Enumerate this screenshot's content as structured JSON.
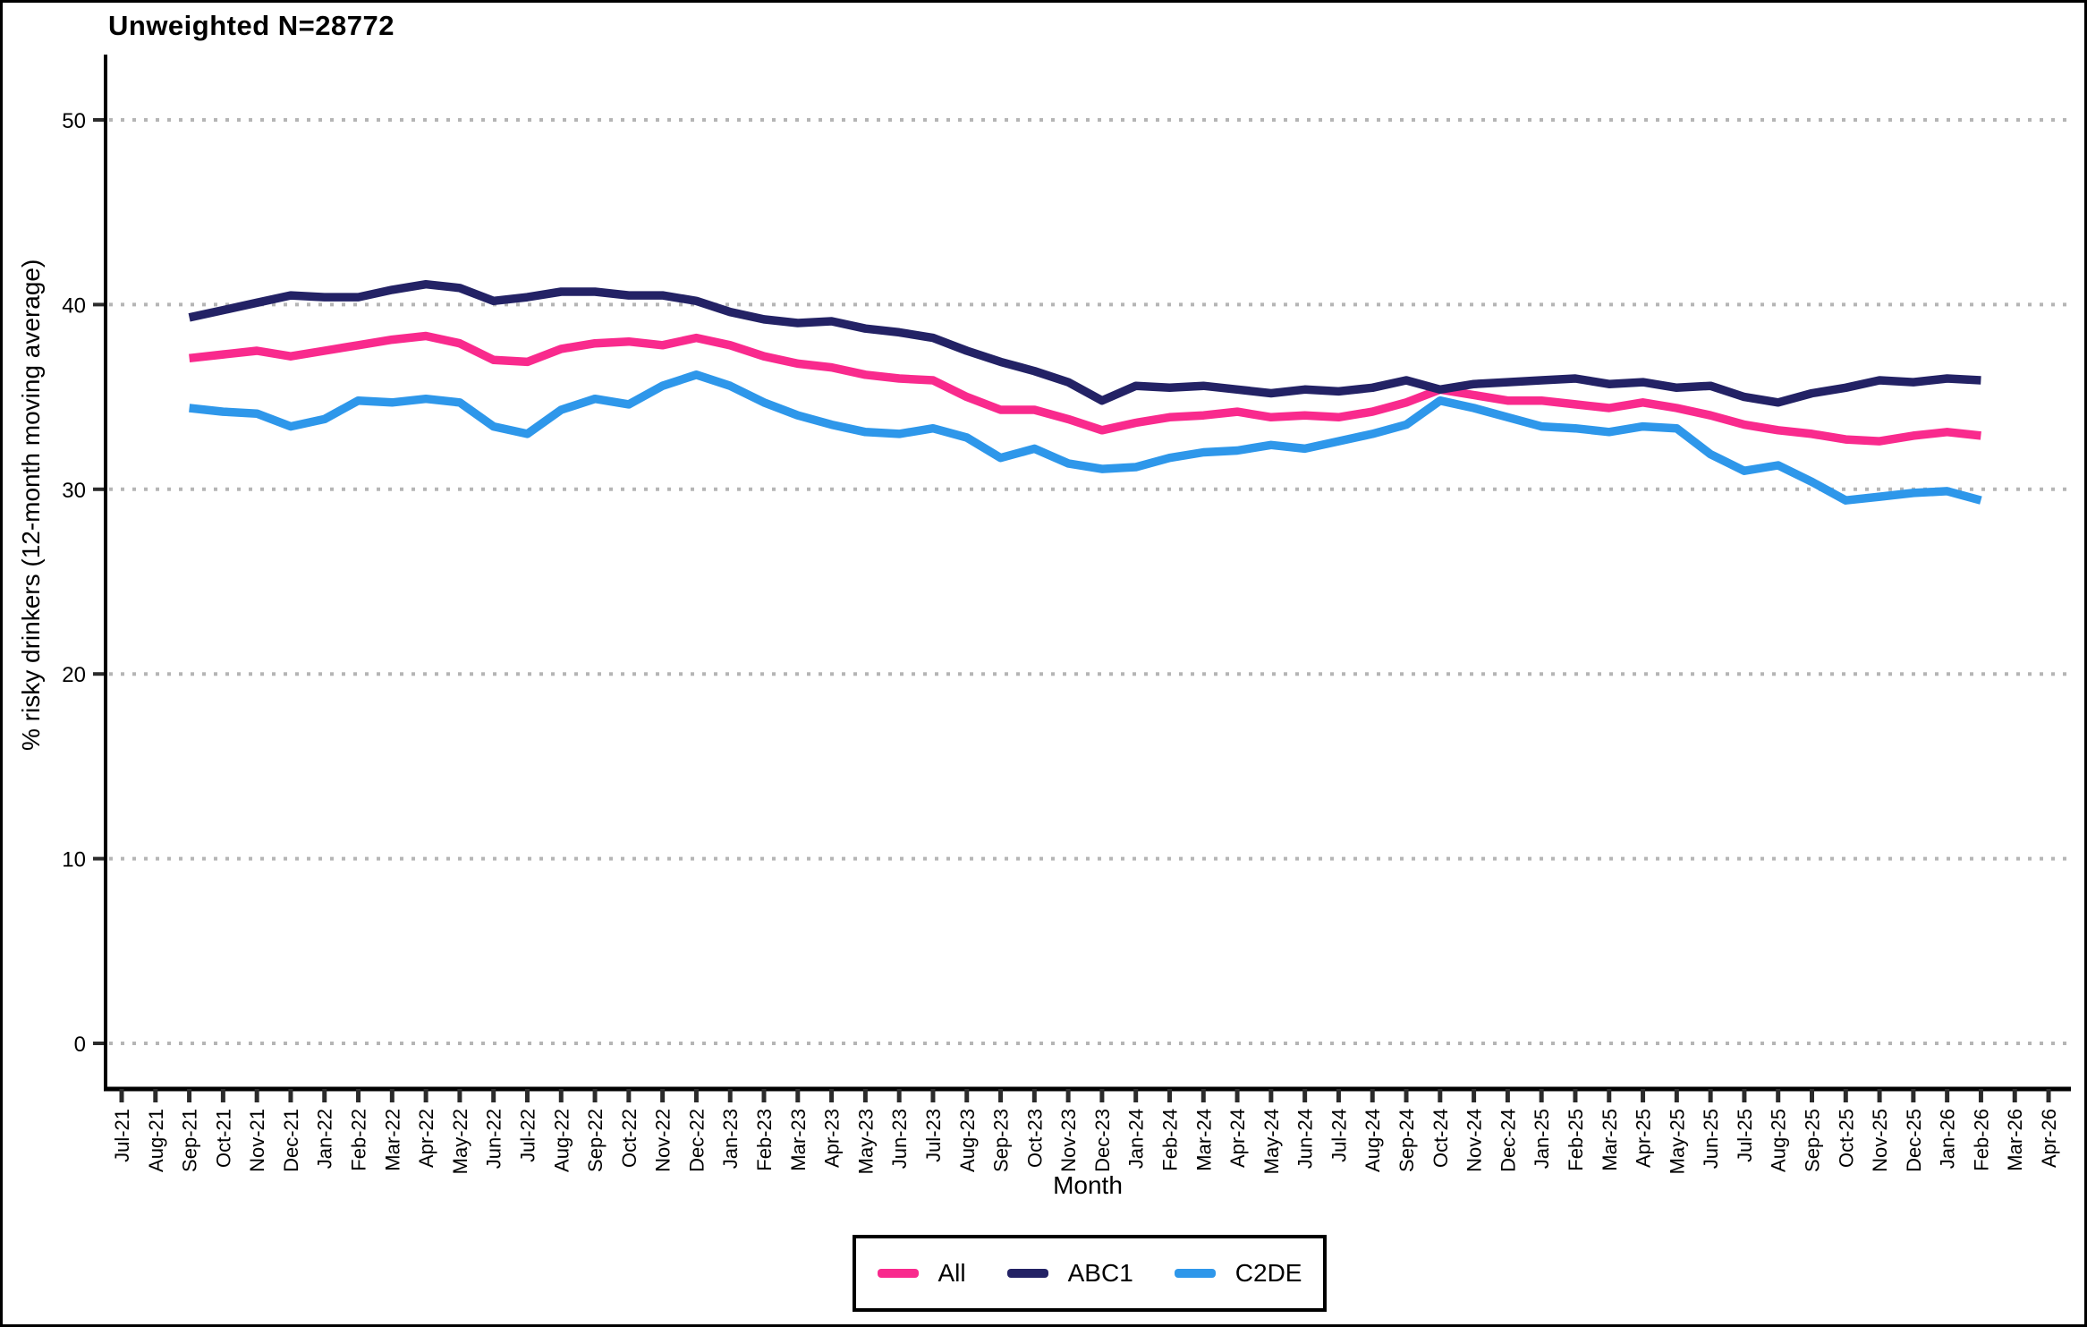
{
  "title": "Unweighted N=28772",
  "legend": {
    "items": [
      {
        "label": "All",
        "color": "#f92a8d"
      },
      {
        "label": "ABC1",
        "color": "#232265"
      },
      {
        "label": "C2DE",
        "color": "#2e97ea"
      }
    ]
  },
  "colors": {
    "all": "#f92a8d",
    "abc1": "#232265",
    "c2de": "#2e97ea",
    "gridline": "#b5b5b5",
    "axis": "#000000"
  },
  "chart_data": {
    "type": "line",
    "title": "Unweighted N=28772",
    "xlabel": "Month",
    "ylabel": "% risky drinkers (12-month moving average)",
    "ylim": [
      0,
      52
    ],
    "yticks": [
      0,
      10,
      20,
      30,
      40,
      50
    ],
    "grid": "horizontal-dotted",
    "legend_position": "bottom-center",
    "x_ticklabels": [
      "Jul-21",
      "Aug-21",
      "Sep-21",
      "Oct-21",
      "Nov-21",
      "Dec-21",
      "Jan-22",
      "Feb-22",
      "Mar-22",
      "Apr-22",
      "May-22",
      "Jun-22",
      "Jul-22",
      "Aug-22",
      "Sep-22",
      "Oct-22",
      "Nov-22",
      "Dec-22",
      "Jan-23",
      "Feb-23",
      "Mar-23",
      "Apr-23",
      "May-23",
      "Jun-23",
      "Jul-23",
      "Aug-23",
      "Sep-23",
      "Oct-23",
      "Nov-23",
      "Dec-23",
      "Jan-24",
      "Feb-24",
      "Mar-24",
      "Apr-24",
      "May-24",
      "Jun-24",
      "Jul-24",
      "Aug-24",
      "Sep-24",
      "Oct-24",
      "Nov-24",
      "Dec-24",
      "Jan-25",
      "Feb-25",
      "Mar-25",
      "Apr-25",
      "May-25",
      "Jun-25",
      "Jul-25",
      "Aug-25",
      "Sep-25",
      "Oct-25",
      "Nov-25",
      "Dec-25",
      "Jan-26",
      "Feb-26",
      "Mar-26",
      "Apr-26"
    ],
    "x": [
      "Sep-21",
      "Oct-21",
      "Nov-21",
      "Dec-21",
      "Jan-22",
      "Feb-22",
      "Mar-22",
      "Apr-22",
      "May-22",
      "Jun-22",
      "Jul-22",
      "Aug-22",
      "Sep-22",
      "Oct-22",
      "Nov-22",
      "Dec-22",
      "Jan-23",
      "Feb-23",
      "Mar-23",
      "Apr-23",
      "May-23",
      "Jun-23",
      "Jul-23",
      "Aug-23",
      "Sep-23",
      "Oct-23",
      "Nov-23",
      "Dec-23",
      "Jan-24",
      "Feb-24",
      "Mar-24",
      "Apr-24",
      "May-24",
      "Jun-24",
      "Jul-24",
      "Aug-24",
      "Sep-24",
      "Oct-24",
      "Nov-24",
      "Dec-24",
      "Jan-25",
      "Feb-25",
      "Mar-25",
      "Apr-25",
      "May-25",
      "Jun-25",
      "Jul-25",
      "Aug-25",
      "Sep-25",
      "Oct-25",
      "Nov-25",
      "Dec-25",
      "Jan-26",
      "Feb-26"
    ],
    "series": [
      {
        "name": "All",
        "color": "#f92a8d",
        "values": [
          37.1,
          37.3,
          37.5,
          37.2,
          37.5,
          37.8,
          38.1,
          38.3,
          37.9,
          37.0,
          36.9,
          37.6,
          37.9,
          38.0,
          37.8,
          38.2,
          37.8,
          37.2,
          36.8,
          36.6,
          36.2,
          36.0,
          35.9,
          35.0,
          34.3,
          34.3,
          33.8,
          33.2,
          33.6,
          33.9,
          34.0,
          34.2,
          33.9,
          34.0,
          33.9,
          34.2,
          34.7,
          35.4,
          35.1,
          34.8,
          34.8,
          34.6,
          34.4,
          34.7,
          34.4,
          34.0,
          33.5,
          33.2,
          33.0,
          32.7,
          32.6,
          32.9,
          33.1,
          32.9
        ]
      },
      {
        "name": "ABC1",
        "color": "#232265",
        "values": [
          39.3,
          39.7,
          40.1,
          40.5,
          40.4,
          40.4,
          40.8,
          41.1,
          40.9,
          40.2,
          40.4,
          40.7,
          40.7,
          40.5,
          40.5,
          40.2,
          39.6,
          39.2,
          39.0,
          39.1,
          38.7,
          38.5,
          38.2,
          37.5,
          36.9,
          36.4,
          35.8,
          34.8,
          35.6,
          35.5,
          35.6,
          35.4,
          35.2,
          35.4,
          35.3,
          35.5,
          35.9,
          35.4,
          35.7,
          35.8,
          35.9,
          36.0,
          35.7,
          35.8,
          35.5,
          35.6,
          35.0,
          34.7,
          35.2,
          35.5,
          35.9,
          35.8,
          36.0,
          35.9
        ]
      },
      {
        "name": "C2DE",
        "color": "#2e97ea",
        "values": [
          34.4,
          34.2,
          34.1,
          33.4,
          33.8,
          34.8,
          34.7,
          34.9,
          34.7,
          33.4,
          33.0,
          34.3,
          34.9,
          34.6,
          35.6,
          36.2,
          35.6,
          34.7,
          34.0,
          33.5,
          33.1,
          33.0,
          33.3,
          32.8,
          31.7,
          32.2,
          31.4,
          31.1,
          31.2,
          31.7,
          32.0,
          32.1,
          32.4,
          32.2,
          32.6,
          33.0,
          33.5,
          34.8,
          34.4,
          33.9,
          33.4,
          33.3,
          33.1,
          33.4,
          33.3,
          31.9,
          31.0,
          31.3,
          30.4,
          29.4,
          29.6,
          29.8,
          29.9,
          29.4
        ]
      }
    ]
  }
}
